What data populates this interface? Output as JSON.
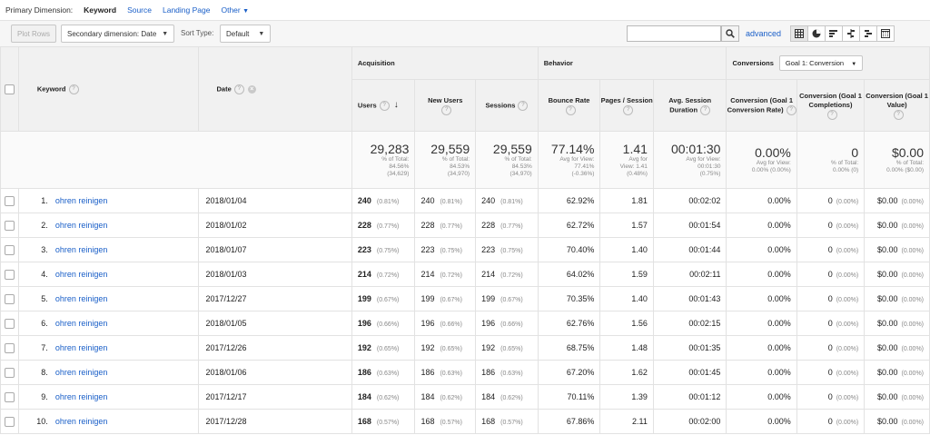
{
  "dimensions": {
    "label": "Primary Dimension:",
    "active": "Keyword",
    "source": "Source",
    "landing_page": "Landing Page",
    "other": "Other"
  },
  "toolbar": {
    "plot_rows": "Plot Rows",
    "secondary_dimension": "Secondary dimension: Date",
    "sort_type_label": "Sort Type:",
    "sort_type_value": "Default",
    "search_value": "",
    "advanced": "advanced"
  },
  "groups": {
    "acquisition": "Acquisition",
    "behavior": "Behavior",
    "conversions": "Conversions",
    "goal_select": "Goal 1: Conversion"
  },
  "columns": {
    "keyword": "Keyword",
    "date": "Date",
    "users": "Users",
    "new_users": "New Users",
    "sessions": "Sessions",
    "bounce_rate": "Bounce Rate",
    "pages_session": "Pages / Session",
    "avg_session_duration": "Avg. Session Duration",
    "conv_rate": "Conversion (Goal 1 Conversion Rate)",
    "completions": "Conversion (Goal 1 Completions)",
    "goal_value": "Conversion (Goal 1 Value)"
  },
  "totals": {
    "users": {
      "value": "29,283",
      "l1": "% of Total:",
      "l2": "84.56%",
      "l3": "(34,629)"
    },
    "new_users": {
      "value": "29,559",
      "l1": "% of Total:",
      "l2": "84.53%",
      "l3": "(34,970)"
    },
    "sessions": {
      "value": "29,559",
      "l1": "% of Total:",
      "l2": "84.53%",
      "l3": "(34,970)"
    },
    "bounce_rate": {
      "value": "77.14%",
      "l1": "Avg for View:",
      "l2": "77.41%",
      "l3": "(-0.36%)"
    },
    "pages_session": {
      "value": "1.41",
      "l1": "Avg for",
      "l2": "View: 1.41",
      "l3": "(0.48%)"
    },
    "avg_duration": {
      "value": "00:01:30",
      "l1": "Avg for View:",
      "l2": "00:01:30",
      "l3": "(0.75%)"
    },
    "conv_rate": {
      "value": "0.00%",
      "l1": "Avg for View:",
      "l2": "0.00% (0.00%)",
      "l3": ""
    },
    "completions": {
      "value": "0",
      "l1": "% of Total:",
      "l2": "0.00% (0)",
      "l3": ""
    },
    "goal_value": {
      "value": "$0.00",
      "l1": "% of Total:",
      "l2": "0.00% ($0.00)",
      "l3": ""
    }
  },
  "rows": [
    {
      "n": "1.",
      "keyword": "ohren reinigen",
      "date": "2018/01/04",
      "users": "240",
      "users_pct": "(0.81%)",
      "new_users": "240",
      "new_users_pct": "(0.81%)",
      "sessions": "240",
      "sessions_pct": "(0.81%)",
      "bounce": "62.92%",
      "pages": "1.81",
      "duration": "00:02:02",
      "conv": "0.00%",
      "comp": "0",
      "comp_pct": "(0.00%)",
      "value": "$0.00",
      "value_pct": "(0.00%)"
    },
    {
      "n": "2.",
      "keyword": "ohren reinigen",
      "date": "2018/01/02",
      "users": "228",
      "users_pct": "(0.77%)",
      "new_users": "228",
      "new_users_pct": "(0.77%)",
      "sessions": "228",
      "sessions_pct": "(0.77%)",
      "bounce": "62.72%",
      "pages": "1.57",
      "duration": "00:01:54",
      "conv": "0.00%",
      "comp": "0",
      "comp_pct": "(0.00%)",
      "value": "$0.00",
      "value_pct": "(0.00%)"
    },
    {
      "n": "3.",
      "keyword": "ohren reinigen",
      "date": "2018/01/07",
      "users": "223",
      "users_pct": "(0.75%)",
      "new_users": "223",
      "new_users_pct": "(0.75%)",
      "sessions": "223",
      "sessions_pct": "(0.75%)",
      "bounce": "70.40%",
      "pages": "1.40",
      "duration": "00:01:44",
      "conv": "0.00%",
      "comp": "0",
      "comp_pct": "(0.00%)",
      "value": "$0.00",
      "value_pct": "(0.00%)"
    },
    {
      "n": "4.",
      "keyword": "ohren reinigen",
      "date": "2018/01/03",
      "users": "214",
      "users_pct": "(0.72%)",
      "new_users": "214",
      "new_users_pct": "(0.72%)",
      "sessions": "214",
      "sessions_pct": "(0.72%)",
      "bounce": "64.02%",
      "pages": "1.59",
      "duration": "00:02:11",
      "conv": "0.00%",
      "comp": "0",
      "comp_pct": "(0.00%)",
      "value": "$0.00",
      "value_pct": "(0.00%)"
    },
    {
      "n": "5.",
      "keyword": "ohren reinigen",
      "date": "2017/12/27",
      "users": "199",
      "users_pct": "(0.67%)",
      "new_users": "199",
      "new_users_pct": "(0.67%)",
      "sessions": "199",
      "sessions_pct": "(0.67%)",
      "bounce": "70.35%",
      "pages": "1.40",
      "duration": "00:01:43",
      "conv": "0.00%",
      "comp": "0",
      "comp_pct": "(0.00%)",
      "value": "$0.00",
      "value_pct": "(0.00%)"
    },
    {
      "n": "6.",
      "keyword": "ohren reinigen",
      "date": "2018/01/05",
      "users": "196",
      "users_pct": "(0.66%)",
      "new_users": "196",
      "new_users_pct": "(0.66%)",
      "sessions": "196",
      "sessions_pct": "(0.66%)",
      "bounce": "62.76%",
      "pages": "1.56",
      "duration": "00:02:15",
      "conv": "0.00%",
      "comp": "0",
      "comp_pct": "(0.00%)",
      "value": "$0.00",
      "value_pct": "(0.00%)"
    },
    {
      "n": "7.",
      "keyword": "ohren reinigen",
      "date": "2017/12/26",
      "users": "192",
      "users_pct": "(0.65%)",
      "new_users": "192",
      "new_users_pct": "(0.65%)",
      "sessions": "192",
      "sessions_pct": "(0.65%)",
      "bounce": "68.75%",
      "pages": "1.48",
      "duration": "00:01:35",
      "conv": "0.00%",
      "comp": "0",
      "comp_pct": "(0.00%)",
      "value": "$0.00",
      "value_pct": "(0.00%)"
    },
    {
      "n": "8.",
      "keyword": "ohren reinigen",
      "date": "2018/01/06",
      "users": "186",
      "users_pct": "(0.63%)",
      "new_users": "186",
      "new_users_pct": "(0.63%)",
      "sessions": "186",
      "sessions_pct": "(0.63%)",
      "bounce": "67.20%",
      "pages": "1.62",
      "duration": "00:01:45",
      "conv": "0.00%",
      "comp": "0",
      "comp_pct": "(0.00%)",
      "value": "$0.00",
      "value_pct": "(0.00%)"
    },
    {
      "n": "9.",
      "keyword": "ohren reinigen",
      "date": "2017/12/17",
      "users": "184",
      "users_pct": "(0.62%)",
      "new_users": "184",
      "new_users_pct": "(0.62%)",
      "sessions": "184",
      "sessions_pct": "(0.62%)",
      "bounce": "70.11%",
      "pages": "1.39",
      "duration": "00:01:12",
      "conv": "0.00%",
      "comp": "0",
      "comp_pct": "(0.00%)",
      "value": "$0.00",
      "value_pct": "(0.00%)"
    },
    {
      "n": "10.",
      "keyword": "ohren reinigen",
      "date": "2017/12/28",
      "users": "168",
      "users_pct": "(0.57%)",
      "new_users": "168",
      "new_users_pct": "(0.57%)",
      "sessions": "168",
      "sessions_pct": "(0.57%)",
      "bounce": "67.86%",
      "pages": "2.11",
      "duration": "00:02:00",
      "conv": "0.00%",
      "comp": "0",
      "comp_pct": "(0.00%)",
      "value": "$0.00",
      "value_pct": "(0.00%)"
    }
  ]
}
